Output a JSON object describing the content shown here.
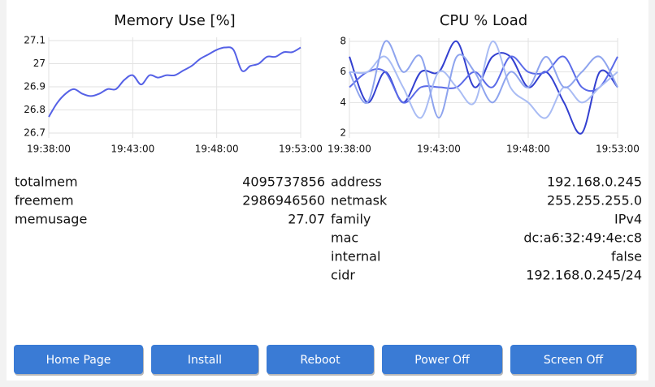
{
  "chart_data": [
    {
      "type": "line",
      "title": "Memory Use [%]",
      "x": [
        "19:38:00",
        "19:38:30",
        "19:39:00",
        "19:39:30",
        "19:40:00",
        "19:40:30",
        "19:41:00",
        "19:41:30",
        "19:42:00",
        "19:42:30",
        "19:43:00",
        "19:43:30",
        "19:44:00",
        "19:44:30",
        "19:45:00",
        "19:45:30",
        "19:46:00",
        "19:46:30",
        "19:47:00",
        "19:47:30",
        "19:48:00",
        "19:48:30",
        "19:49:00",
        "19:49:30",
        "19:50:00",
        "19:50:30",
        "19:51:00",
        "19:51:30",
        "19:52:00",
        "19:52:30",
        "19:53:00"
      ],
      "series": [
        {
          "color": "#5561e6",
          "values": [
            26.77,
            26.83,
            26.87,
            26.89,
            26.87,
            26.86,
            26.87,
            26.89,
            26.89,
            26.93,
            26.95,
            26.91,
            26.95,
            26.94,
            26.95,
            26.95,
            26.97,
            26.99,
            27.02,
            27.04,
            27.06,
            27.07,
            27.06,
            26.97,
            26.99,
            27.0,
            27.03,
            27.03,
            27.05,
            27.05,
            27.07
          ]
        }
      ],
      "xlim": [
        "19:38:00",
        "19:53:00"
      ],
      "xticks": [
        "19:38:00",
        "19:43:00",
        "19:48:00",
        "19:53:00"
      ],
      "ylim": [
        26.7,
        27.1
      ],
      "yticks": [
        26.7,
        26.8,
        26.9,
        27,
        27.1
      ],
      "grid": true
    },
    {
      "type": "line",
      "title": "CPU % Load",
      "x": [
        "19:38:00",
        "19:39:00",
        "19:40:00",
        "19:41:00",
        "19:42:00",
        "19:43:00",
        "19:44:00",
        "19:45:00",
        "19:46:00",
        "19:47:00",
        "19:48:00",
        "19:49:00",
        "19:50:00",
        "19:51:00",
        "19:52:00",
        "19:53:00"
      ],
      "series": [
        {
          "color": "#3340d0",
          "values": [
            7,
            4,
            6,
            4,
            6,
            6,
            8,
            5,
            7,
            7,
            5,
            6,
            4,
            2,
            6,
            5
          ]
        },
        {
          "color": "#5a6ae8",
          "values": [
            5,
            6,
            6,
            4,
            5,
            5,
            5,
            6,
            5,
            7,
            6,
            6,
            7,
            5,
            5,
            7
          ]
        },
        {
          "color": "#a9bcf4",
          "values": [
            6,
            6,
            7,
            5,
            3,
            6,
            5,
            4,
            8,
            5,
            4,
            3,
            5,
            4,
            5,
            6
          ]
        },
        {
          "color": "#8ea4ee",
          "values": [
            6,
            4,
            8,
            6,
            7,
            3,
            7,
            6,
            4,
            6,
            5,
            7,
            5,
            6,
            7,
            5
          ]
        }
      ],
      "xlim": [
        "19:38:00",
        "19:53:00"
      ],
      "xticks": [
        "19:38:00",
        "19:43:00",
        "19:48:00",
        "19:53:00"
      ],
      "ylim": [
        2,
        8
      ],
      "yticks": [
        2,
        4,
        6,
        8
      ],
      "grid": true
    }
  ],
  "memory": {
    "rows": [
      [
        "totalmem",
        4095737856
      ],
      [
        "freemem",
        2986946560
      ],
      [
        "memusage",
        27.07
      ]
    ]
  },
  "network": {
    "rows": [
      [
        "address",
        "192.168.0.245"
      ],
      [
        "netmask",
        "255.255.255.0"
      ],
      [
        "family",
        "IPv4"
      ],
      [
        "mac",
        "dc:a6:32:49:4e:c8"
      ],
      [
        "internal",
        "false"
      ],
      [
        "cidr",
        "192.168.0.245/24"
      ]
    ]
  },
  "buttons": [
    "Home Page",
    "Install",
    "Reboot",
    "Power Off",
    "Screen Off"
  ]
}
